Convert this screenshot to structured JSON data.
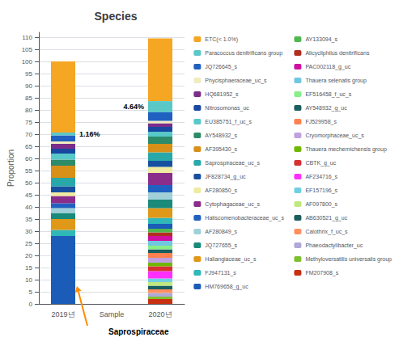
{
  "chart_data": {
    "type": "bar",
    "title": "Species",
    "ylabel": "Proportion",
    "categories": [
      "2019년",
      "Sample",
      "2020년"
    ],
    "stacked": true,
    "grid": true,
    "legend": "right",
    "annotation": "Saprospiraceae",
    "ylim": [
      0,
      112
    ],
    "yticks": [
      0,
      5,
      10,
      15,
      20,
      25,
      30,
      35,
      40,
      45,
      50,
      55,
      60,
      65,
      70,
      75,
      80,
      85,
      90,
      95,
      100,
      105,
      110
    ],
    "series": [
      {
        "name": "FM207908_s",
        "color": "#C83010",
        "values": [
          null,
          null,
          2.0
        ]
      },
      {
        "name": "Methyloversatilis universalis group",
        "color": "#80C030",
        "values": [
          null,
          null,
          1.0
        ]
      },
      {
        "name": "Phaeodactylibacter_uc",
        "color": "#B0A8D8",
        "values": [
          null,
          null,
          1.5
        ]
      },
      {
        "name": "Calothrix_f_uc_s",
        "color": "#FF9060",
        "values": [
          null,
          null,
          1.5
        ]
      },
      {
        "name": "AB630521_g_uc",
        "color": "#1A5E60",
        "values": [
          null,
          null,
          1.5
        ]
      },
      {
        "name": "AF097800_s",
        "color": "#C0E880",
        "values": [
          null,
          null,
          1.5
        ]
      },
      {
        "name": "EF157196_s",
        "color": "#70D0E0",
        "values": [
          null,
          null,
          1.5
        ]
      },
      {
        "name": "AF234716_s",
        "color": "#FF30FF",
        "values": [
          null,
          null,
          3.0
        ]
      },
      {
        "name": "CBTK_g_uc",
        "color": "#D83030",
        "values": [
          null,
          null,
          2.0
        ]
      },
      {
        "name": "Thauera mechernichensis group",
        "color": "#70B800",
        "values": [
          null,
          null,
          1.5
        ]
      },
      {
        "name": "Cryomorphaceae_uc_s",
        "color": "#C0A0E0",
        "values": [
          null,
          null,
          2.0
        ]
      },
      {
        "name": "FJ529958_s",
        "color": "#FF8050",
        "values": [
          null,
          null,
          2.0
        ]
      },
      {
        "name": "AY548932_g_uc",
        "color": "#1A5E60",
        "values": [
          null,
          null,
          1.5
        ]
      },
      {
        "name": "EF516458_f_uc_s",
        "color": "#88EE88",
        "values": [
          null,
          null,
          1.5
        ]
      },
      {
        "name": "Thauera selenatis group",
        "color": "#70C8E0",
        "values": [
          null,
          null,
          2.0
        ]
      },
      {
        "name": "PAC002118_g_uc",
        "color": "#D010A0",
        "values": [
          null,
          null,
          2.0
        ]
      },
      {
        "name": "Alicycliphilus denitrificans",
        "color": "#B03020",
        "values": [
          null,
          null,
          1.5
        ]
      },
      {
        "name": "AY133094_s",
        "color": "#50B850",
        "values": [
          null,
          null,
          1.5
        ]
      },
      {
        "name": "HM769658_g_uc",
        "color": "#1A5CB8",
        "values": [
          28.0,
          null,
          2.0
        ]
      },
      {
        "name": "FJ947131_s",
        "color": "#30B8B8",
        "values": [
          2.5,
          null,
          2.5
        ]
      },
      {
        "name": "Haliangiaceae_uc_s",
        "color": "#E09818",
        "values": [
          4.5,
          null,
          4.0
        ]
      },
      {
        "name": "JQ727655_s",
        "color": "#1A8A7A",
        "values": [
          2.5,
          null,
          3.5
        ]
      },
      {
        "name": "AF280849_s",
        "color": "#A0D0D8",
        "values": [
          2.0,
          null,
          3.0
        ]
      },
      {
        "name": "Haliscomenobacteraceae_uc_s",
        "color": "#2060C0",
        "values": [
          2.0,
          null,
          3.0
        ]
      },
      {
        "name": "Cytophagaceae_uc_s",
        "color": "#8B2D8B",
        "values": [
          3.0,
          null,
          5.0
        ]
      },
      {
        "name": "AF280850_s",
        "color": "#F0EBA0",
        "values": [
          1.5,
          null,
          2.5
        ]
      },
      {
        "name": "JF828734_g_uc",
        "color": "#1850A0",
        "values": [
          2.5,
          null,
          2.5
        ]
      },
      {
        "name": "Saprospiraceae_uc_s",
        "color": "#28A8A8",
        "values": [
          3.5,
          null,
          3.5
        ]
      },
      {
        "name": "AF395430_s",
        "color": "#D89018",
        "values": [
          5.0,
          null,
          3.5
        ]
      },
      {
        "name": "AY548932_s",
        "color": "#2D8B6A",
        "values": [
          2.5,
          null,
          3.0
        ]
      },
      {
        "name": "EU385751_f_uc_s",
        "color": "#58C8C8",
        "values": [
          2.5,
          null,
          2.0
        ]
      },
      {
        "name": "Nitrosomonas_uc",
        "color": "#1848A0",
        "values": [
          2.0,
          null,
          2.0
        ]
      },
      {
        "name": "HQ681952_s",
        "color": "#7B2D8B",
        "values": [
          2.0,
          null,
          1.5
        ]
      },
      {
        "name": "Phycisphaeraceae_uc_s",
        "color": "#F0EBC0",
        "values": [
          1.0,
          null,
          1.0
        ]
      },
      {
        "name": "JQ726645_s",
        "color": "#2060C0",
        "values": [
          2.5,
          null,
          3.5
        ]
      },
      {
        "name": "Paracoccus denitrificans group",
        "color": "#5BC8C8",
        "values": [
          1.16,
          null,
          4.64
        ],
        "value_labels": [
          "1.16%",
          null,
          "4.64%"
        ]
      },
      {
        "name": "ETC(< 1.0%)",
        "color": "#F5A623",
        "values": [
          29.34,
          null,
          25.86
        ]
      }
    ]
  }
}
